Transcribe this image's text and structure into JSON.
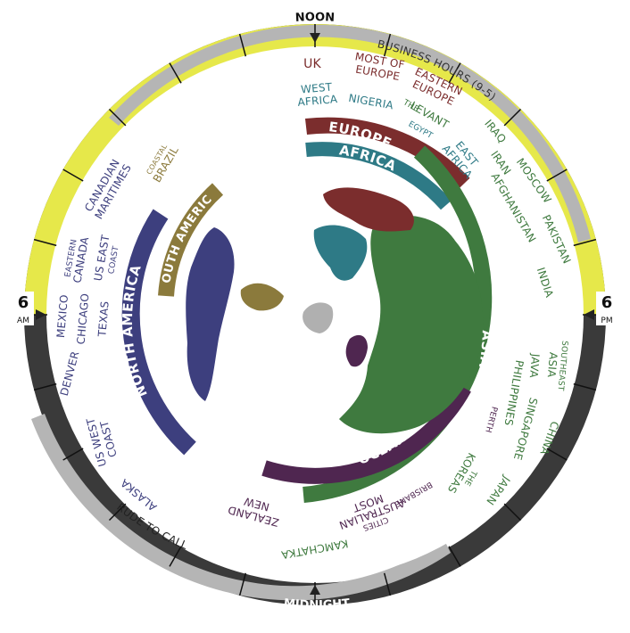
{
  "colors": {
    "day_band": "#e6e84a",
    "night_band": "#3a3a3a",
    "business": "#b5b5b5",
    "rude": "#b5b5b5",
    "europe": "#7b2d2d",
    "africa": "#2e7a86",
    "asia": "#3f7a3f",
    "oceania": "#4f2650",
    "north_america": "#3d3f7e",
    "south_america": "#8b7a3c",
    "antarctica": "#b0b0b0"
  },
  "dial": {
    "noon": "NOON",
    "midnight": "MIDNIGHT",
    "six_am_num": "6",
    "six_am_suffix": "AM",
    "six_pm_num": "6",
    "six_pm_suffix": "PM"
  },
  "bands": {
    "business": "BUSINESS HOURS (9-5)",
    "rude": "RUDE TO CALL"
  },
  "regions": {
    "europe": "EUROPE",
    "africa": "AFRICA",
    "asia": "ASIA",
    "oceania": "OCEANIA",
    "north_america": "NORTH AMERICA",
    "south_america": "SOUTH AMERICA"
  },
  "places": {
    "uk": "UK",
    "most_of_europe": [
      "MOST OF",
      "EUROPE"
    ],
    "eastern_europe": [
      "EASTERN",
      "EUROPE"
    ],
    "west_africa": [
      "WEST",
      "AFRICA"
    ],
    "nigeria": "NIGERIA",
    "levant": [
      "THE",
      "LEVANT"
    ],
    "egypt": "EGYPT",
    "east_africa": [
      "EAST",
      "AFRICA"
    ],
    "iraq": "IRAQ",
    "iran": "IRAN",
    "moscow": "MOSCOW",
    "afghanistan": "AFGHANISTAN",
    "pakistan": "PAKISTAN",
    "india": "INDIA",
    "southeast_asia": [
      "SOUTHEAST",
      "ASIA"
    ],
    "java": "JAVA",
    "philippines": "PHILIPPINES",
    "singapore": "SINGAPORE",
    "china": "CHINA",
    "perth": "PERTH",
    "the_koreas": [
      "THE",
      "KOREAS"
    ],
    "japan": "JAPAN",
    "brisbane": "BRISBANE",
    "most_australian_cities": [
      "MOST",
      "AUSTRALIAN",
      "CITIES"
    ],
    "kamchatka": "KAMCHATKA",
    "new_zealand": [
      "NEW",
      "ZEALAND"
    ],
    "alaska": "ALASKA",
    "us_west_coast": [
      "US WEST",
      "COAST"
    ],
    "denver": "DENVER",
    "mexico": "MEXICO",
    "chicago": "CHICAGO",
    "texas": "TEXAS",
    "eastern_canada": [
      "EASTERN",
      "CANADA"
    ],
    "us_east_coast": [
      "US EAST",
      "COAST"
    ],
    "canadian_maritimes": [
      "CANADIAN",
      "MARITIMES"
    ],
    "coastal_brazil": [
      "COASTAL",
      "BRAZIL"
    ]
  }
}
